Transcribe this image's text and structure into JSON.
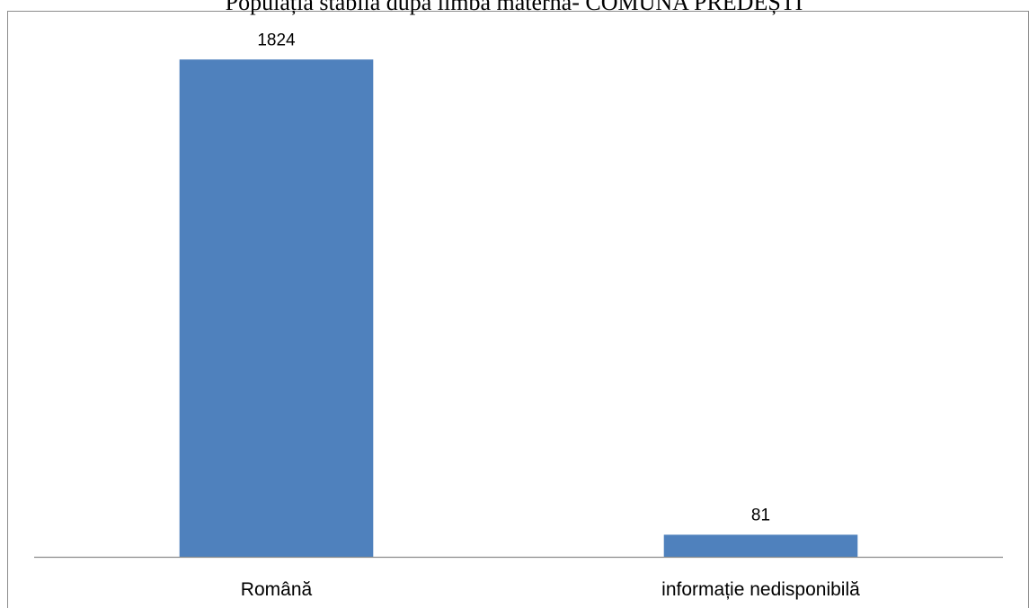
{
  "chart_data": {
    "type": "bar",
    "title": "Populația stabilă după limba maternă- COMUNA PREDEȘTI",
    "categories": [
      "Română",
      "informație nedisponibilă"
    ],
    "values": [
      1824,
      81
    ],
    "data_labels": [
      "1824",
      "81"
    ],
    "xlabel": "",
    "ylabel": "",
    "ylim": [
      0,
      1950
    ],
    "grid": false,
    "legend": "none",
    "bar_color": "#4F81BD"
  }
}
